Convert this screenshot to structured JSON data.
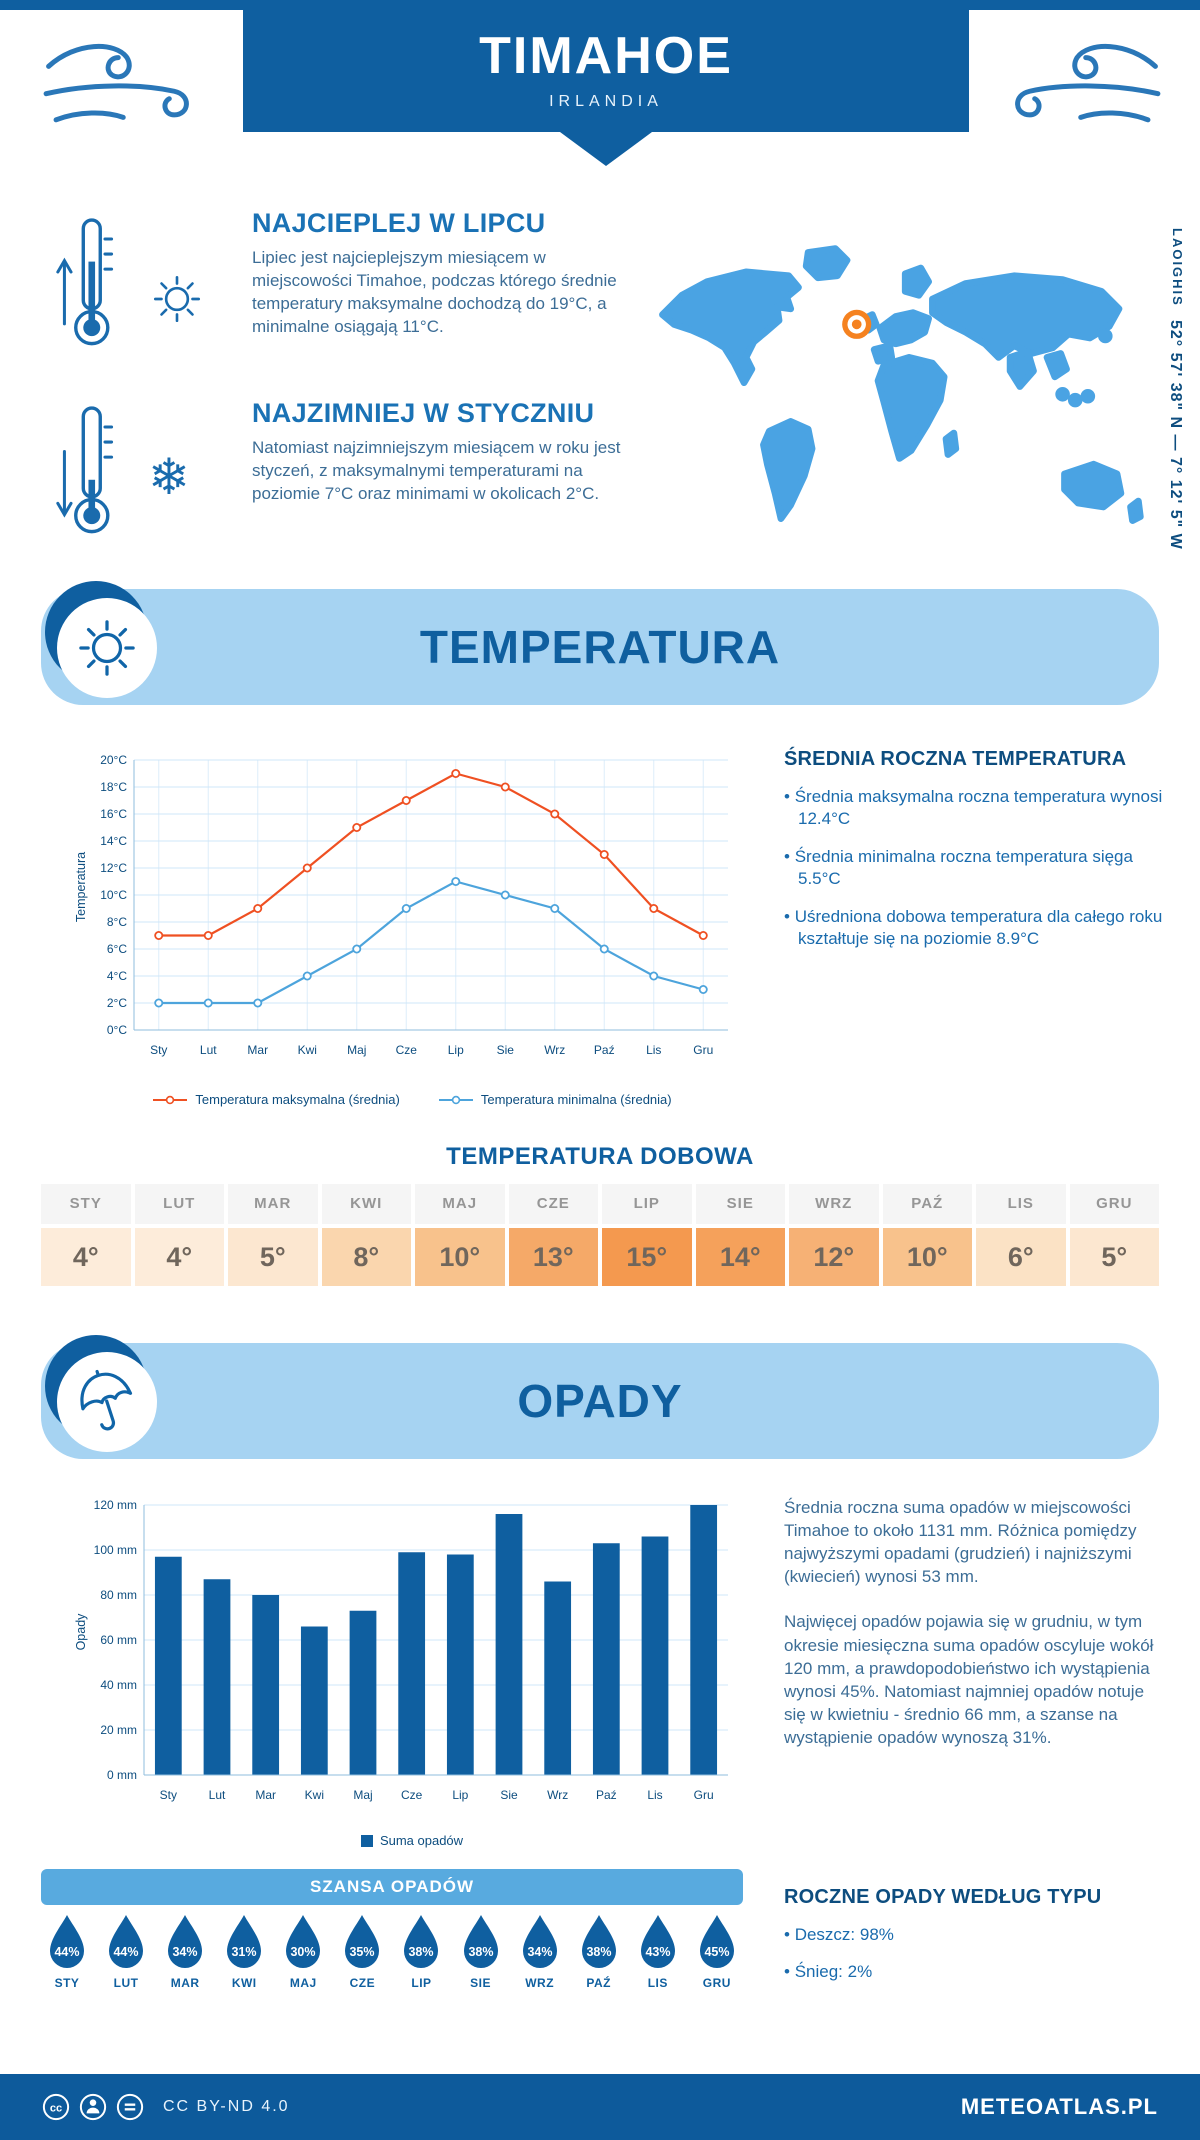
{
  "colors": {
    "dark_blue": "#0f5fa0",
    "light_blue_banner": "#a6d3f2",
    "banner_text": "#0f5f9f",
    "map_blue": "#4aa3e3",
    "marker_orange": "#f58220",
    "max_line": "#ef5022",
    "min_line": "#4da4dc",
    "chance_banner": "#58aadf"
  },
  "icons": {
    "snowflake": "❄"
  },
  "header": {
    "title": "TIMAHOE",
    "subtitle": "IRLANDIA"
  },
  "location": {
    "region": "LAOIGHIS",
    "coordinates": "52° 57' 38\" N — 7° 12' 5\" W"
  },
  "highlights": {
    "warm": {
      "heading": "NAJCIEPLEJ W LIPCU",
      "text": "Lipiec jest najcieplejszym miesiącem w miejscowości Timahoe, podczas którego średnie temperatury maksymalne dochodzą do 19°C, a minimalne osiągają 11°C."
    },
    "cold": {
      "heading": "NAJZIMNIEJ W STYCZNIU",
      "text": "Natomiast najzimniejszym miesiącem w roku jest styczeń, z maksymalnymi temperaturami na poziomie 7°C oraz minimami w okolicach 2°C."
    }
  },
  "temperature": {
    "banner_title": "TEMPERATURA",
    "summary_heading": "ŚREDNIA ROCZNA TEMPERATURA",
    "bullets": [
      "Średnia maksymalna roczna temperatura wynosi 12.4°C",
      "Średnia minimalna roczna temperatura sięga 5.5°C",
      "Uśredniona dobowa temperatura dla całego roku kształtuje się na poziomie 8.9°C"
    ],
    "daily_heading": "TEMPERATURA DOBOWA",
    "daily": {
      "months": [
        "STY",
        "LUT",
        "MAR",
        "KWI",
        "MAJ",
        "CZE",
        "LIP",
        "SIE",
        "WRZ",
        "PAŹ",
        "LIS",
        "GRU"
      ],
      "values": [
        "4°",
        "4°",
        "5°",
        "8°",
        "10°",
        "13°",
        "15°",
        "14°",
        "12°",
        "10°",
        "6°",
        "5°"
      ],
      "colors": [
        "#fdecda",
        "#fdecda",
        "#fce7d0",
        "#fad6ae",
        "#f8c28c",
        "#f5a968",
        "#f4994f",
        "#f5a15b",
        "#f6b175",
        "#f8c28c",
        "#fbe2c5",
        "#fce7d0"
      ]
    }
  },
  "precipitation": {
    "banner_title": "OPADY",
    "paragraph1": "Średnia roczna suma opadów w miejscowości Timahoe to około 1131 mm. Różnica pomiędzy najwyższymi opadami (grudzień) i najniższymi (kwiecień) wynosi 53 mm.",
    "paragraph2": "Najwięcej opadów pojawia się w grudniu, w tym okresie miesięczna suma opadów oscyluje wokół 120 mm, a prawdopodobieństwo ich wystąpienia wynosi 45%. Natomiast najmniej opadów notuje się w kwietniu - średnio 66 mm, a szanse na wystąpienie opadów wynoszą 31%.",
    "chance_title": "SZANSA OPADÓW",
    "chance": {
      "months": [
        "STY",
        "LUT",
        "MAR",
        "KWI",
        "MAJ",
        "CZE",
        "LIP",
        "SIE",
        "WRZ",
        "PAŹ",
        "LIS",
        "GRU"
      ],
      "values": [
        "44%",
        "44%",
        "34%",
        "31%",
        "30%",
        "35%",
        "38%",
        "38%",
        "34%",
        "38%",
        "43%",
        "45%"
      ]
    },
    "type_heading": "ROCZNE OPADY WEDŁUG TYPU",
    "type_bullets": [
      "Deszcz: 98%",
      "Śnieg: 2%"
    ]
  },
  "footer": {
    "license": "CC BY-ND 4.0",
    "site": "METEOATLAS.PL"
  },
  "chart_data": [
    {
      "type": "line",
      "categories": [
        "Sty",
        "Lut",
        "Mar",
        "Kwi",
        "Maj",
        "Cze",
        "Lip",
        "Sie",
        "Wrz",
        "Paź",
        "Lis",
        "Gru"
      ],
      "series": [
        {
          "name": "Temperatura maksymalna (średnia)",
          "color": "#ef5022",
          "values": [
            7,
            7,
            9,
            12,
            15,
            17,
            19,
            18,
            16,
            13,
            9,
            7
          ]
        },
        {
          "name": "Temperatura minimalna (średnia)",
          "color": "#4da4dc",
          "values": [
            2,
            2,
            2,
            4,
            6,
            9,
            11,
            10,
            9,
            6,
            4,
            3
          ]
        }
      ],
      "ylabel": "Temperatura",
      "ylim": [
        0,
        20
      ],
      "ytick_step": 2,
      "ytick_suffix": "°C",
      "grid": true,
      "legend_position": "bottom"
    },
    {
      "type": "bar",
      "categories": [
        "Sty",
        "Lut",
        "Mar",
        "Kwi",
        "Maj",
        "Cze",
        "Lip",
        "Sie",
        "Wrz",
        "Paź",
        "Lis",
        "Gru"
      ],
      "series": [
        {
          "name": "Suma opadów",
          "color": "#0f5fa0",
          "values": [
            97,
            87,
            80,
            66,
            73,
            99,
            98,
            116,
            86,
            103,
            106,
            120
          ]
        }
      ],
      "ylabel": "Opady",
      "ylim": [
        0,
        120
      ],
      "ytick_step": 20,
      "ytick_suffix": " mm",
      "grid": true,
      "legend_position": "bottom"
    }
  ]
}
